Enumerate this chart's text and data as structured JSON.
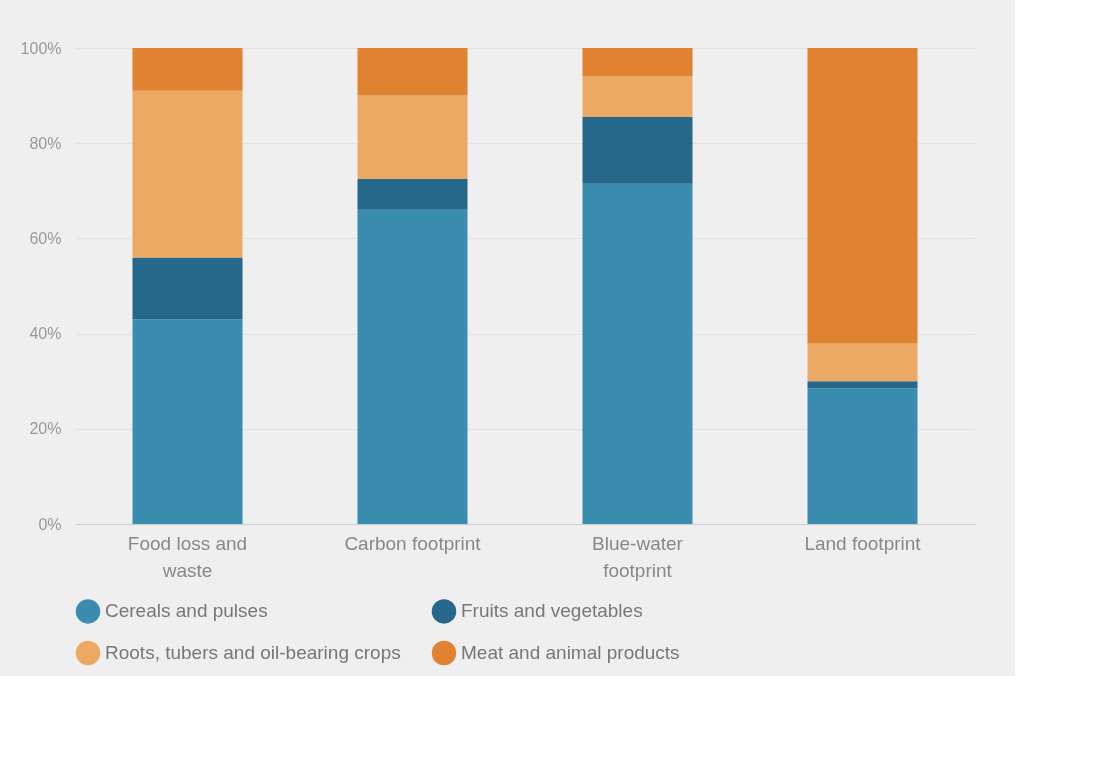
{
  "chart_data": {
    "type": "bar",
    "stacked": true,
    "categories": [
      "Food loss and waste",
      "Carbon footprint",
      "Blue-water footprint",
      "Land footprint"
    ],
    "series": [
      {
        "name": "Cereals and pulses",
        "color": "#3b8db0",
        "values": [
          43,
          66,
          71.5,
          28.5
        ]
      },
      {
        "name": "Fruits and vegetables",
        "color": "#26678c",
        "values": [
          13,
          6.5,
          14,
          1.5
        ]
      },
      {
        "name": "Roots, tubers and oil-bearing crops",
        "color": "#eba964",
        "values": [
          35,
          17.5,
          8.5,
          8
        ]
      },
      {
        "name": "Meat and animal products",
        "color": "#e08230",
        "values": [
          9,
          10,
          6,
          62
        ]
      }
    ],
    "ylim": [
      0,
      100
    ],
    "yticks": [
      {
        "value": 0,
        "label": "0%"
      },
      {
        "value": 20,
        "label": "20%"
      },
      {
        "value": 40,
        "label": "40%"
      },
      {
        "value": 60,
        "label": "60%"
      },
      {
        "value": 80,
        "label": "80%"
      },
      {
        "value": 100,
        "label": "100%"
      }
    ],
    "grid": "y",
    "legend": "bottom"
  }
}
